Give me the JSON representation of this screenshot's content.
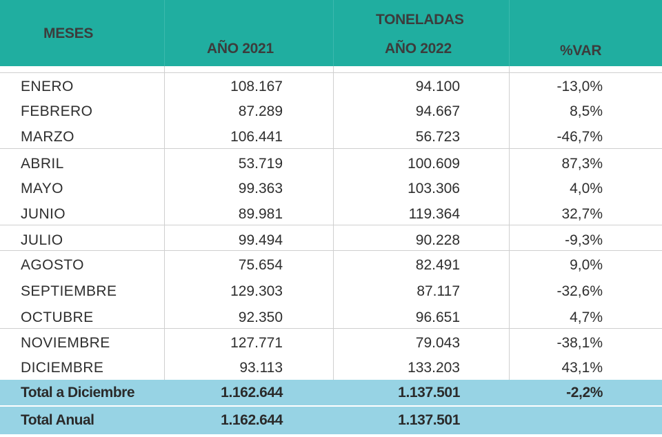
{
  "header": {
    "meses": "MESES",
    "group": "TONELADAS",
    "col_2021": "AÑO 2021",
    "col_2022": "AÑO 2022",
    "col_var": "%VAR"
  },
  "rows": [
    {
      "mes": "ENERO",
      "y2021": "108.167",
      "y2022": "94.100",
      "var": "-13,0%"
    },
    {
      "mes": "FEBRERO",
      "y2021": "87.289",
      "y2022": "94.667",
      "var": "8,5%"
    },
    {
      "mes": "MARZO",
      "y2021": "106.441",
      "y2022": "56.723",
      "var": "-46,7%"
    },
    {
      "mes": "ABRIL",
      "y2021": "53.719",
      "y2022": "100.609",
      "var": "87,3%"
    },
    {
      "mes": "MAYO",
      "y2021": "99.363",
      "y2022": "103.306",
      "var": "4,0%"
    },
    {
      "mes": "JUNIO",
      "y2021": "89.981",
      "y2022": "119.364",
      "var": "32,7%"
    },
    {
      "mes": "JULIO",
      "y2021": "99.494",
      "y2022": "90.228",
      "var": "-9,3%"
    },
    {
      "mes": "AGOSTO",
      "y2021": "75.654",
      "y2022": "82.491",
      "var": "9,0%"
    },
    {
      "mes": "SEPTIEMBRE",
      "y2021": "129.303",
      "y2022": "87.117",
      "var": "-32,6%"
    },
    {
      "mes": "OCTUBRE",
      "y2021": "92.350",
      "y2022": "96.651",
      "var": "4,7%"
    },
    {
      "mes": "NOVIEMBRE",
      "y2021": "127.771",
      "y2022": "79.043",
      "var": "-38,1%"
    },
    {
      "mes": "DICIEMBRE",
      "y2021": "93.113",
      "y2022": "133.203",
      "var": "43,1%"
    }
  ],
  "total_diciembre": {
    "label": "Total a Diciembre",
    "y2021": "1.162.644",
    "y2022": "1.137.501",
    "var": "-2,2%"
  },
  "total_anual": {
    "label": "Total Anual",
    "y2021": "1.162.644",
    "y2022": "1.137.501",
    "var": ""
  },
  "colors": {
    "header": "#20aea0",
    "totals": "#97d3e4"
  }
}
